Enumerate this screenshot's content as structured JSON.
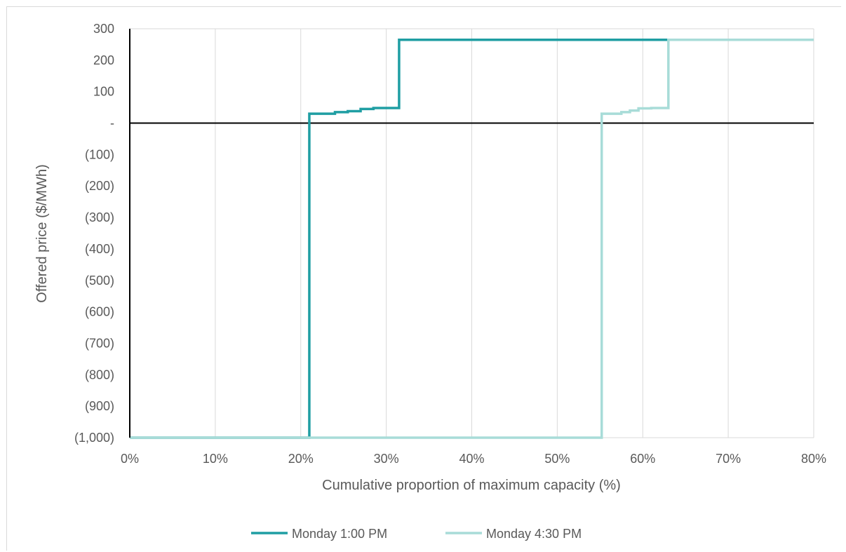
{
  "chart_data": {
    "type": "line",
    "step": true,
    "xlabel": "Cumulative proportion of maximum capacity (%)",
    "ylabel": "Offered price ($/MWh)",
    "xlim": [
      0,
      80
    ],
    "ylim": [
      -1000,
      300
    ],
    "x_ticks": [
      0,
      10,
      20,
      30,
      40,
      50,
      60,
      70,
      80
    ],
    "x_tick_labels": [
      "0%",
      "10%",
      "20%",
      "30%",
      "40%",
      "50%",
      "60%",
      "70%",
      "80%"
    ],
    "y_ticks": [
      300,
      200,
      100,
      0,
      -100,
      -200,
      -300,
      -400,
      -500,
      -600,
      -700,
      -800,
      -900,
      -1000
    ],
    "y_tick_labels": [
      "300",
      "200",
      "100",
      "-",
      "(100)",
      "(200)",
      "(300)",
      "(400)",
      "(500)",
      "(600)",
      "(700)",
      "(800)",
      "(900)",
      "(1,000)"
    ],
    "grid": "vertical",
    "legend_position": "bottom",
    "series": [
      {
        "name": "Monday 1:00 PM",
        "color": "#1f9ea3",
        "points": [
          [
            0,
            -1000
          ],
          [
            21,
            -1000
          ],
          [
            21,
            30
          ],
          [
            24,
            30
          ],
          [
            24,
            35
          ],
          [
            25.5,
            35
          ],
          [
            25.5,
            38
          ],
          [
            27,
            38
          ],
          [
            27,
            45
          ],
          [
            28.5,
            45
          ],
          [
            28.5,
            48
          ],
          [
            31.5,
            48
          ],
          [
            31.5,
            265
          ],
          [
            80,
            265
          ]
        ]
      },
      {
        "name": "Monday 4:30 PM",
        "color": "#a8dcd8",
        "points": [
          [
            0,
            -1000
          ],
          [
            55.2,
            -1000
          ],
          [
            55.2,
            30
          ],
          [
            57.5,
            30
          ],
          [
            57.5,
            35
          ],
          [
            58.5,
            35
          ],
          [
            58.5,
            40
          ],
          [
            59.5,
            40
          ],
          [
            59.5,
            47
          ],
          [
            61,
            47
          ],
          [
            61,
            48
          ],
          [
            63,
            48
          ],
          [
            63,
            265
          ],
          [
            80,
            265
          ]
        ]
      }
    ]
  }
}
